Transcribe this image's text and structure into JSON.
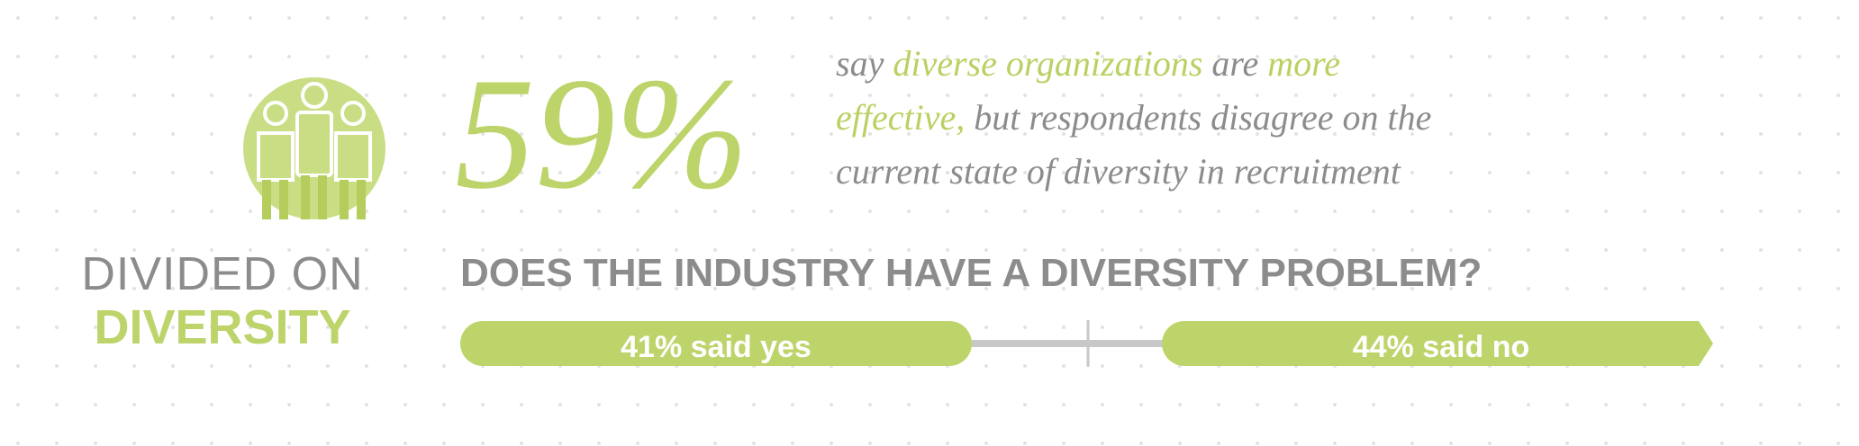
{
  "header": {
    "line1": "DIVIDED ON",
    "line2": "DIVERSITY"
  },
  "stat": {
    "value_label": "59%",
    "sentence": [
      [
        {
          "text": "say ",
          "color": "#8c8c8c"
        },
        {
          "text": "diverse organizations",
          "color": "#b9d163"
        },
        {
          "text": " are ",
          "color": "#8c8c8c"
        },
        {
          "text": "more",
          "color": "#b9d163"
        }
      ],
      [
        {
          "text": "effective,",
          "color": "#b9d163"
        },
        {
          "text": " but respondents disagree on the",
          "color": "#8c8c8c"
        }
      ],
      [
        {
          "text": "current state of diversity in recruitment",
          "color": "#8c8c8c"
        }
      ]
    ]
  },
  "question": {
    "title": "DOES THE INDUSTRY HAVE A DIVERSITY PROBLEM?",
    "yes_label": "41% said yes",
    "no_label": "44% said no"
  }
}
